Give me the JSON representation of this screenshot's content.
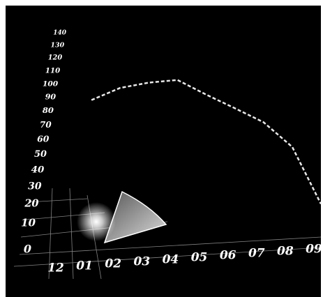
{
  "chart_data": {
    "type": "line",
    "categories": [
      "12",
      "01",
      "02",
      "03",
      "04",
      "05",
      "06",
      "07",
      "08",
      "09"
    ],
    "series": [
      {
        "color": "#e8e8e8",
        "values": [
          null,
          88,
          97,
          101,
          103,
          92,
          82,
          72,
          55,
          20
        ]
      }
    ],
    "ylim": [
      0,
      140
    ],
    "yticks": [
      0,
      10,
      20,
      30,
      40,
      50,
      60,
      70,
      80,
      90,
      100,
      110,
      120,
      130,
      140
    ]
  }
}
